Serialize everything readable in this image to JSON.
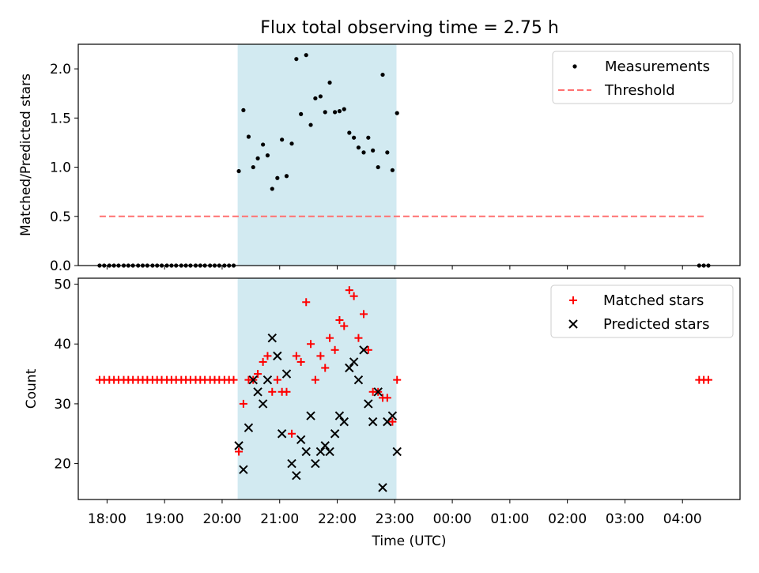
{
  "title": "Flux total observing time = 2.75 h",
  "colors": {
    "span": "#add8e6",
    "measurements": "#000000",
    "threshold": "#ff7070",
    "matched": "#ff0000",
    "predicted": "#000000"
  },
  "chart_data": [
    {
      "type": "scatter",
      "ylabel": "Matched/Predicted stars",
      "xlim": [
        17.5,
        29.0
      ],
      "ylim": [
        0,
        2.25
      ],
      "yticks": [
        0.0,
        0.5,
        1.0,
        1.5,
        2.0
      ],
      "highlight_span": [
        20.27,
        23.03
      ],
      "legend": {
        "placement": "top-right",
        "entries": [
          "Measurements",
          "Threshold"
        ]
      },
      "series": [
        {
          "name": "Measurements",
          "marker": "dot",
          "x": [
            17.87,
            17.95,
            18.04,
            18.12,
            18.2,
            18.29,
            18.37,
            18.45,
            18.54,
            18.62,
            18.7,
            18.79,
            18.87,
            18.95,
            19.04,
            19.12,
            19.2,
            19.29,
            19.37,
            19.45,
            19.54,
            19.62,
            19.7,
            19.79,
            19.87,
            19.95,
            20.04,
            20.12,
            20.2,
            20.29,
            20.37,
            20.46,
            20.54,
            20.62,
            20.71,
            20.79,
            20.87,
            20.96,
            21.04,
            21.12,
            21.21,
            21.29,
            21.37,
            21.46,
            21.54,
            21.62,
            21.71,
            21.79,
            21.87,
            21.96,
            22.04,
            22.12,
            22.21,
            22.29,
            22.37,
            22.46,
            22.54,
            22.62,
            22.71,
            22.79,
            22.87,
            22.96,
            23.04,
            28.29,
            28.37,
            28.45
          ],
          "y": [
            0,
            0,
            0,
            0,
            0,
            0,
            0,
            0,
            0,
            0,
            0,
            0,
            0,
            0,
            0,
            0,
            0,
            0,
            0,
            0,
            0,
            0,
            0,
            0,
            0,
            0,
            0,
            0,
            0,
            0.96,
            1.58,
            1.31,
            1.0,
            1.09,
            1.23,
            1.12,
            0.78,
            0.89,
            1.28,
            0.91,
            1.24,
            2.1,
            1.54,
            2.14,
            1.43,
            1.7,
            1.72,
            1.56,
            1.86,
            1.56,
            1.57,
            1.59,
            1.35,
            1.3,
            1.2,
            1.15,
            1.3,
            1.17,
            1.0,
            1.94,
            1.15,
            0.97,
            1.55,
            0,
            0,
            0
          ]
        },
        {
          "name": "Threshold",
          "style": "dashed",
          "x": [
            17.87,
            28.37
          ],
          "y": [
            0.5,
            0.5
          ]
        }
      ]
    },
    {
      "type": "scatter",
      "xlabel": "Time (UTC)",
      "ylabel": "Count",
      "xlim": [
        17.5,
        29.0
      ],
      "ylim": [
        14,
        51
      ],
      "yticks": [
        20,
        30,
        40,
        50
      ],
      "xticks": [
        18,
        19,
        20,
        21,
        22,
        23,
        24,
        25,
        26,
        27,
        28
      ],
      "xticklabels": [
        "18:00",
        "19:00",
        "20:00",
        "21:00",
        "22:00",
        "23:00",
        "00:00",
        "01:00",
        "02:00",
        "03:00",
        "04:00"
      ],
      "highlight_span": [
        20.27,
        23.03
      ],
      "legend": {
        "placement": "top-right",
        "entries": [
          "Matched stars",
          "Predicted stars"
        ]
      },
      "series": [
        {
          "name": "Matched stars",
          "marker": "plus",
          "x": [
            17.87,
            17.95,
            18.04,
            18.12,
            18.2,
            18.29,
            18.37,
            18.45,
            18.54,
            18.62,
            18.7,
            18.79,
            18.87,
            18.95,
            19.04,
            19.12,
            19.2,
            19.29,
            19.37,
            19.45,
            19.54,
            19.62,
            19.7,
            19.79,
            19.87,
            19.95,
            20.04,
            20.12,
            20.2,
            20.29,
            20.37,
            20.46,
            20.54,
            20.62,
            20.71,
            20.79,
            20.87,
            20.96,
            21.04,
            21.12,
            21.21,
            21.29,
            21.37,
            21.46,
            21.54,
            21.62,
            21.71,
            21.79,
            21.87,
            21.96,
            22.04,
            22.12,
            22.21,
            22.29,
            22.37,
            22.46,
            22.54,
            22.62,
            22.71,
            22.79,
            22.87,
            22.96,
            23.04,
            28.29,
            28.37,
            28.45
          ],
          "y": [
            34,
            34,
            34,
            34,
            34,
            34,
            34,
            34,
            34,
            34,
            34,
            34,
            34,
            34,
            34,
            34,
            34,
            34,
            34,
            34,
            34,
            34,
            34,
            34,
            34,
            34,
            34,
            34,
            34,
            22,
            30,
            34,
            34,
            35,
            37,
            38,
            32,
            34,
            32,
            32,
            25,
            38,
            37,
            47,
            40,
            34,
            38,
            36,
            41,
            39,
            44,
            43,
            49,
            48,
            41,
            45,
            39,
            32,
            32,
            31,
            31,
            27,
            34,
            34,
            34,
            34
          ]
        },
        {
          "name": "Predicted stars",
          "marker": "x",
          "x": [
            20.29,
            20.37,
            20.46,
            20.54,
            20.62,
            20.71,
            20.79,
            20.87,
            20.96,
            21.04,
            21.12,
            21.21,
            21.29,
            21.37,
            21.46,
            21.54,
            21.62,
            21.71,
            21.79,
            21.87,
            21.96,
            22.04,
            22.12,
            22.21,
            22.29,
            22.37,
            22.46,
            22.54,
            22.62,
            22.71,
            22.79,
            22.87,
            22.96,
            23.04
          ],
          "y": [
            23,
            19,
            26,
            34,
            32,
            30,
            34,
            41,
            38,
            25,
            35,
            20,
            18,
            24,
            22,
            28,
            20,
            22,
            23,
            22,
            25,
            28,
            27,
            36,
            37,
            34,
            39,
            30,
            27,
            32,
            16,
            27,
            28,
            22
          ]
        }
      ]
    }
  ]
}
